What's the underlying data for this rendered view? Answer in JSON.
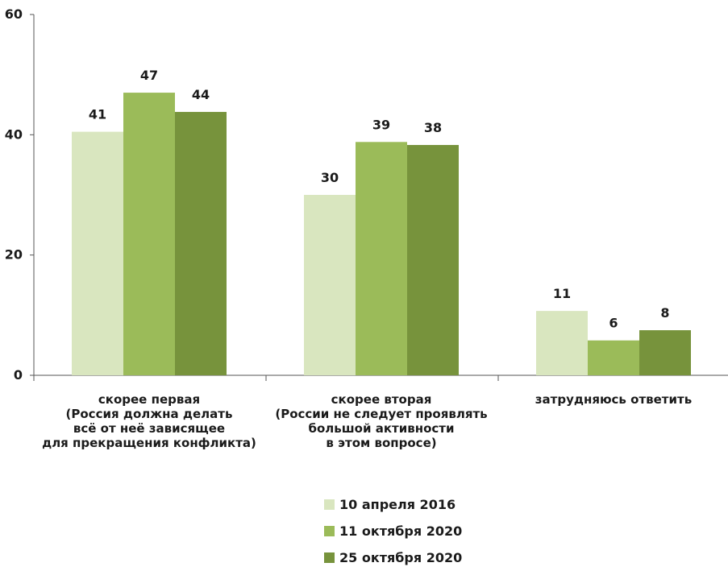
{
  "chart_data": {
    "type": "bar",
    "categories": [
      "скорее первая\n(Россия должна делать\nвсё от неё зависящее\nдля прекращения конфликта)",
      "скорее вторая\n(России не следует проявлять\nбольшой активности\nв этом вопросе)",
      "затрудняюсь ответить"
    ],
    "series": [
      {
        "name": "10 апреля 2016",
        "color": "#d9e6bf",
        "values": [
          41,
          30,
          11
        ],
        "bar_values": [
          40.5,
          30,
          10.7
        ]
      },
      {
        "name": "11 октября 2020",
        "color": "#9bbb59",
        "values": [
          47,
          39,
          6
        ],
        "bar_values": [
          47,
          38.8,
          5.8
        ]
      },
      {
        "name": "25 октября 2020",
        "color": "#77933c",
        "values": [
          44,
          38,
          8
        ],
        "bar_values": [
          43.8,
          38.3,
          7.5
        ]
      }
    ],
    "ylim": [
      0,
      60
    ],
    "yticks": [
      "0",
      "20",
      "40",
      "60"
    ],
    "legend_position": "bottom"
  }
}
